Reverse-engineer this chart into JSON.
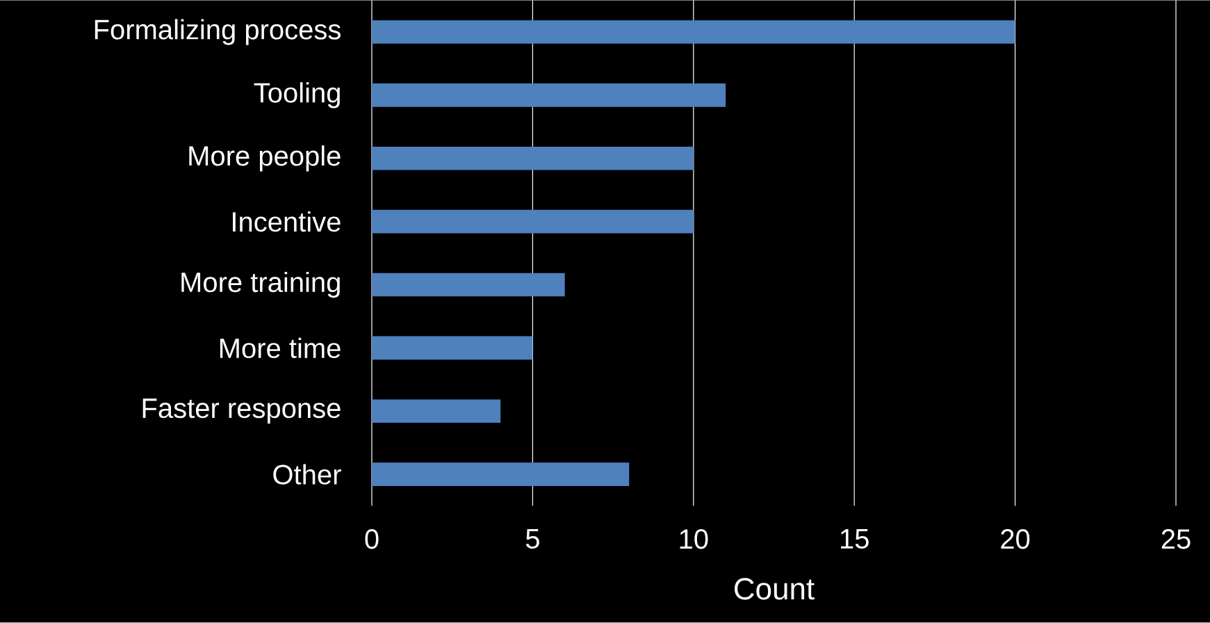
{
  "chart_data": {
    "type": "bar",
    "orientation": "horizontal",
    "xlabel": "Count",
    "categories": [
      "Formalizing process",
      "Tooling",
      "More people",
      "Incentive",
      "More training",
      "More time",
      "Faster response",
      "Other"
    ],
    "values": [
      20,
      11,
      10,
      10,
      6,
      5,
      4,
      8
    ],
    "color": "#4f81bd",
    "xlim": [
      0,
      25
    ],
    "xticks": [
      0,
      5,
      10,
      15,
      20,
      25
    ],
    "grid": "x"
  }
}
